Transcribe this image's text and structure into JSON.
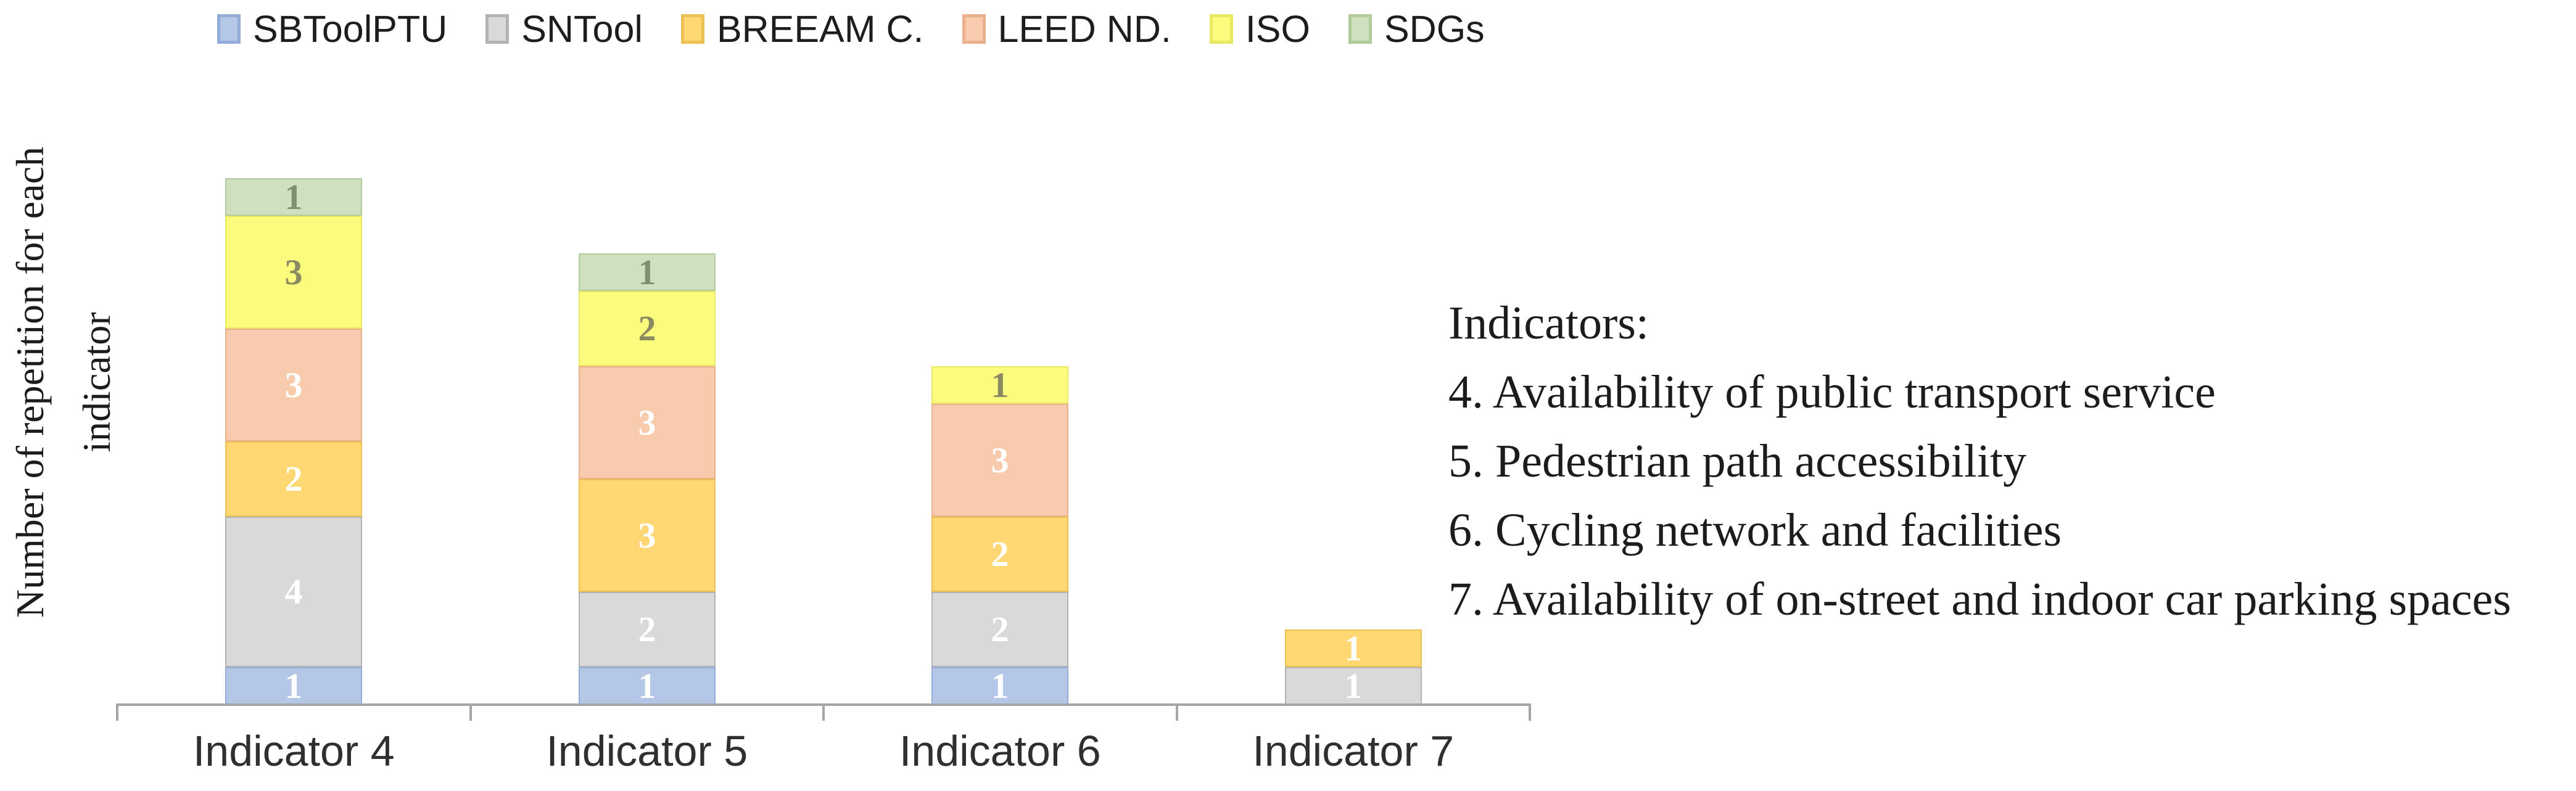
{
  "chart_data": {
    "type": "bar",
    "stacked": true,
    "title": "",
    "xlabel": "",
    "ylabel": "Number of repetition for each indicator",
    "ylabel_lines": [
      "Number of repetition for each",
      "indicator"
    ],
    "categories": [
      "Indicator 4",
      "Indicator 5",
      "Indicator 6",
      "Indicator 7"
    ],
    "series": [
      {
        "name": "SBToolPTU",
        "color": "#b4c7e7",
        "border_color": "#94add8",
        "label_color": "#ffffff",
        "values": [
          1,
          1,
          1,
          0
        ]
      },
      {
        "name": "SNTool",
        "color": "#d9d9d9",
        "border_color": "#b3b3b3",
        "label_color": "#ffffff",
        "values": [
          4,
          2,
          2,
          1
        ]
      },
      {
        "name": "BREEAM C.",
        "color": "#ffd873",
        "border_color": "#ecc154",
        "label_color": "#ffffff",
        "values": [
          2,
          3,
          2,
          1
        ]
      },
      {
        "name": "LEED ND.",
        "color": "#f8cbad",
        "border_color": "#eab08c",
        "label_color": "#ffffff",
        "values": [
          3,
          3,
          3,
          0
        ]
      },
      {
        "name": "ISO",
        "color": "#fbfb7d",
        "border_color": "#e8e862",
        "label_color": "#8b8b62",
        "values": [
          3,
          2,
          1,
          0
        ]
      },
      {
        "name": "SDGs",
        "color": "#cfe0bf",
        "border_color": "#b2cb9c",
        "label_color": "#7f9071",
        "values": [
          1,
          1,
          0,
          0
        ]
      }
    ],
    "totals": [
      14,
      12,
      9,
      2
    ],
    "ylim": [
      0,
      14
    ],
    "gridlines": false,
    "legend_position": "top",
    "axis_color": "#a6a6a6"
  },
  "annotation": {
    "title": "Indicators:",
    "items": [
      "4. Availability of public transport service",
      "5. Pedestrian path accessibility",
      "6. Cycling network and facilities",
      "7. Availability of on-street and indoor car parking spaces"
    ]
  }
}
